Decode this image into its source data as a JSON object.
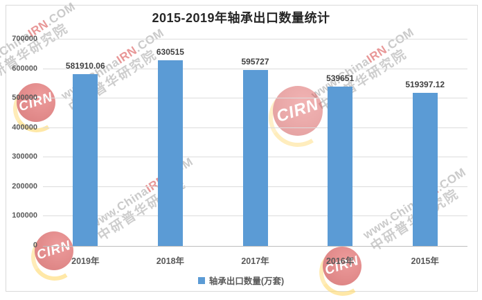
{
  "watermark": {
    "url_prefix": "www.China",
    "url_highlight": "IRN",
    "url_suffix": ".COM",
    "line2": "中研普华研究院",
    "logo_text": "CIRN",
    "logo_color": "#cc3a3a"
  },
  "chart_data": {
    "type": "bar",
    "title": "2015-2019年轴承出口数量统计",
    "categories": [
      "2019年",
      "2018年",
      "2017年",
      "2016年",
      "2015年"
    ],
    "values": [
      581910.06,
      630515,
      595727,
      539651,
      519397.12
    ],
    "data_labels": [
      "581910.06",
      "630515",
      "595727",
      "539651",
      "519397.12"
    ],
    "xlabel": "",
    "ylabel": "",
    "ylim": [
      0,
      700000
    ],
    "ytick_step": 100000,
    "ytick_labels": [
      "0",
      "100000",
      "200000",
      "300000",
      "400000",
      "500000",
      "600000",
      "700000"
    ],
    "grid": true,
    "bar_color": "#5B9BD5",
    "legend_position": "bottom",
    "legend": [
      {
        "label": "轴承出口数量(万套)",
        "color": "#5B9BD5"
      }
    ]
  }
}
